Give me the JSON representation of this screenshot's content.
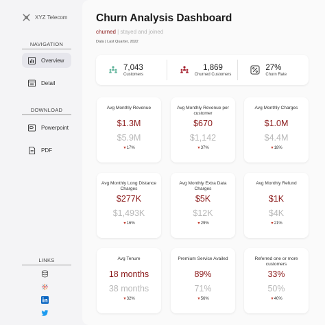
{
  "brand": {
    "name": "XYZ Telecom"
  },
  "sidebar": {
    "navigation_title": "NAVIGATION",
    "nav_items": [
      {
        "label": "Overview",
        "icon": "chart-icon",
        "active": true
      },
      {
        "label": "Detail",
        "icon": "table-icon",
        "active": false
      }
    ],
    "download_title": "DOWNLOAD",
    "download_items": [
      {
        "label": "Powerpoint",
        "icon": "powerpoint-icon"
      },
      {
        "label": "PDF",
        "icon": "pdf-icon"
      }
    ],
    "links_title": "LINKS",
    "links": [
      "database-icon",
      "tableau-icon",
      "linkedin-icon",
      "twitter-icon"
    ]
  },
  "header": {
    "title": "Churn Analysis Dashboard",
    "subtitle_churned": "churned",
    "subtitle_separator": "|",
    "subtitle_rest": "stayed and joined",
    "date_label": "Data",
    "date_separator": "|",
    "date_value": "Last Quarter, 2022"
  },
  "kpis": [
    {
      "value": "7,043",
      "label": "Customers",
      "icon": "customers-icon"
    },
    {
      "value": "1,869",
      "label": "Churned Customers",
      "icon": "churned-icon"
    },
    {
      "value": "27%",
      "label": "Churn Rate",
      "icon": "percent-icon"
    }
  ],
  "cards": [
    {
      "title": "Avg Monthly Revenue",
      "value": "$1.3M",
      "prev": "$5.9M",
      "change": "17%"
    },
    {
      "title": "Avg Monthly Revenue per customer",
      "value": "$670",
      "prev": "$1,142",
      "change": "37%"
    },
    {
      "title": "Avg Monthly Charges",
      "value": "$1.0M",
      "prev": "$4.4M",
      "change": "18%"
    },
    {
      "title": "Avg Monthly Long Distance Charges",
      "value": "$277K",
      "prev": "$1,493K",
      "change": "16%"
    },
    {
      "title": "Avg Monthly Extra Data Charges",
      "value": "$5K",
      "prev": "$12K",
      "change": "29%"
    },
    {
      "title": "Avg Monthly Refund",
      "value": "$1K",
      "prev": "$4K",
      "change": "21%"
    },
    {
      "title": "Avg Tenure",
      "value": "18 months",
      "prev": "38 months",
      "change": "32%"
    },
    {
      "title": "Premium Service Availed",
      "value": "89%",
      "prev": "71%",
      "change": "56%"
    },
    {
      "title": "Referred one or more customers",
      "value": "33%",
      "prev": "50%",
      "change": "40%"
    }
  ],
  "colors": {
    "accent": "#8b1a1a",
    "muted": "#b8b8b8",
    "down_arrow": "#c0392b"
  }
}
